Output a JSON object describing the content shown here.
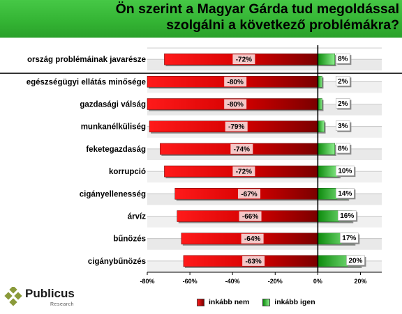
{
  "title_line1": "Ön szerint a Magyar Gárda tud megoldással",
  "title_line2": "szolgálni a következő problémákra?",
  "colors": {
    "banner": "#3cb93c",
    "nem": "#c00000",
    "igen": "#2fb52f"
  },
  "legend": {
    "nem": "inkább nem",
    "igen": "inkább igen"
  },
  "logo": {
    "name": "Publicus",
    "sub": "Research"
  },
  "chart_data": {
    "type": "bar",
    "orientation": "horizontal",
    "xlim": [
      -80,
      30
    ],
    "xticks": [
      "-80%",
      "-60%",
      "-40%",
      "-20%",
      "0%",
      "20%"
    ],
    "categories": [
      "ország problémáinak javarésze",
      "egészségügyi ellátás minősége",
      "gazdasági válság",
      "munkanélküliség",
      "feketegazdaság",
      "korrupció",
      "cigányellenesség",
      "árvíz",
      "bűnözés",
      "cigánybűnözés"
    ],
    "series": [
      {
        "name": "inkább nem",
        "values": [
          -72,
          -80,
          -80,
          -79,
          -74,
          -72,
          -67,
          -66,
          -64,
          -63
        ],
        "labels": [
          "-72%",
          "-80%",
          "-80%",
          "-79%",
          "-74%",
          "-72%",
          "-67%",
          "-66%",
          "-64%",
          "-63%"
        ]
      },
      {
        "name": "inkább igen",
        "values": [
          8,
          2,
          2,
          3,
          8,
          10,
          14,
          16,
          17,
          20
        ],
        "labels": [
          "8%",
          "2%",
          "2%",
          "3%",
          "8%",
          "10%",
          "14%",
          "16%",
          "17%",
          "20%"
        ]
      }
    ],
    "grid": true,
    "legend_position": "bottom"
  }
}
